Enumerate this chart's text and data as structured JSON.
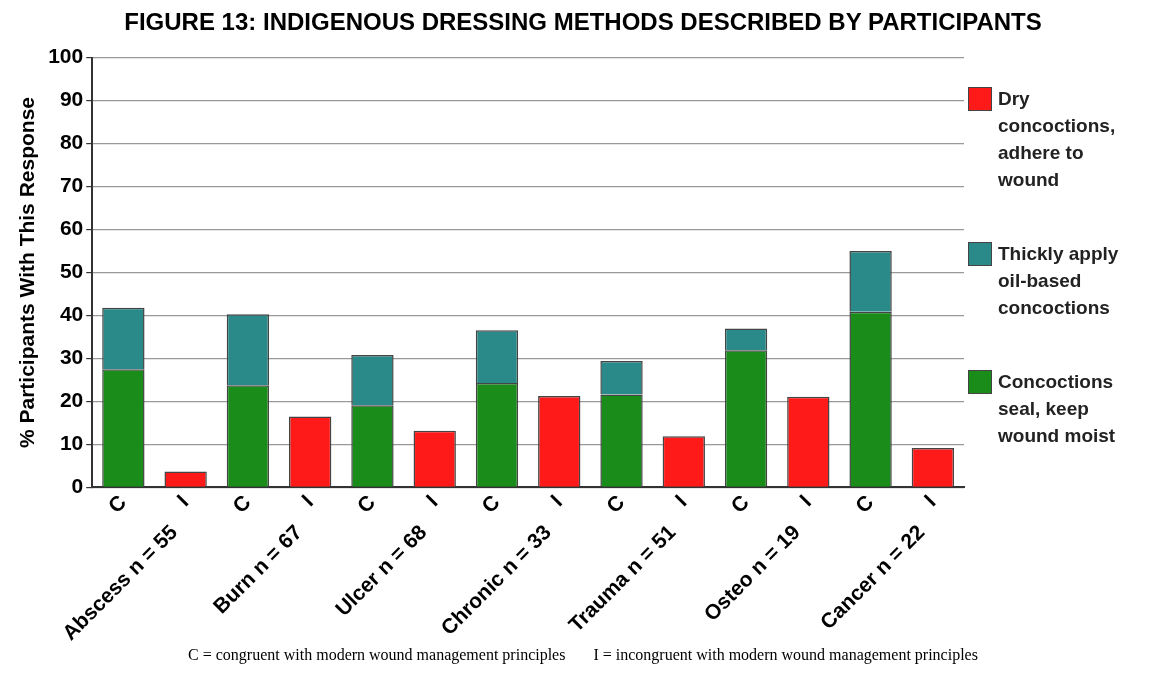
{
  "chart_data": {
    "type": "bar",
    "title": "FIGURE 13: INDIGENOUS DRESSING METHODS DESCRIBED BY PARTICIPANTS",
    "ylabel": "% Participants With This Response",
    "categories": [
      "C",
      "I",
      "C",
      "I",
      "C",
      "I",
      "C",
      "I",
      "C",
      "I",
      "C",
      "I",
      "C",
      "I"
    ],
    "series": [
      {
        "name": "Concoctions seal, keep wound moist",
        "color": "#1a8c1a",
        "values": [
          27.5,
          null,
          23.8,
          null,
          19.1,
          null,
          24.3,
          null,
          21.6,
          null,
          31.9,
          null,
          40.9,
          null
        ]
      },
      {
        "name": "Thickly apply oil-based concoctions",
        "color": "#2a8a8a",
        "values": [
          14.3,
          null,
          16.5,
          null,
          11.7,
          null,
          12.3,
          null,
          7.8,
          null,
          5.1,
          null,
          14.1,
          null
        ]
      },
      {
        "name": "Dry concoctions, adhere to wound",
        "color": "#ff1a1a",
        "values": [
          null,
          3.7,
          null,
          16.5,
          null,
          13.2,
          null,
          21.3,
          null,
          11.9,
          null,
          21.1,
          null,
          9.2
        ]
      }
    ],
    "stacked": true,
    "ylim": [
      0,
      100
    ],
    "yticks": [
      0,
      10,
      20,
      30,
      40,
      50,
      60,
      70,
      80,
      90,
      100
    ],
    "grid": "y",
    "legend": "right",
    "annotations": [
      "Abscess n = 55",
      "Burn n = 67",
      "Ulcer n = 68",
      "Chronic n = 33",
      "Trauma n = 51",
      "Osteo n = 19",
      "Cancer n = 22",
      "C = congruent with modern wound management principles",
      "I = incongruent with modern wound management principles"
    ]
  }
}
